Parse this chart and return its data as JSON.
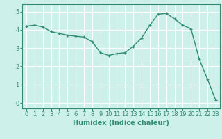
{
  "x": [
    0,
    1,
    2,
    3,
    4,
    5,
    6,
    7,
    8,
    9,
    10,
    11,
    12,
    13,
    14,
    15,
    16,
    17,
    18,
    19,
    20,
    21,
    22,
    23
  ],
  "y": [
    4.2,
    4.25,
    4.15,
    3.9,
    3.8,
    3.7,
    3.65,
    3.6,
    3.35,
    2.75,
    2.6,
    2.7,
    2.75,
    3.1,
    3.55,
    4.25,
    4.85,
    4.9,
    4.6,
    4.25,
    4.05,
    2.4,
    1.3,
    0.15
  ],
  "line_color": "#2e8b74",
  "marker_color": "#2e8b74",
  "bg_color": "#cef0ea",
  "grid_color": "#ffffff",
  "xlabel": "Humidex (Indice chaleur)",
  "xlim": [
    -0.5,
    23.5
  ],
  "ylim": [
    -0.3,
    5.4
  ],
  "yticks": [
    0,
    1,
    2,
    3,
    4,
    5
  ],
  "xticks": [
    0,
    1,
    2,
    3,
    4,
    5,
    6,
    7,
    8,
    9,
    10,
    11,
    12,
    13,
    14,
    15,
    16,
    17,
    18,
    19,
    20,
    21,
    22,
    23
  ],
  "label_fontsize": 7,
  "tick_fontsize": 6
}
